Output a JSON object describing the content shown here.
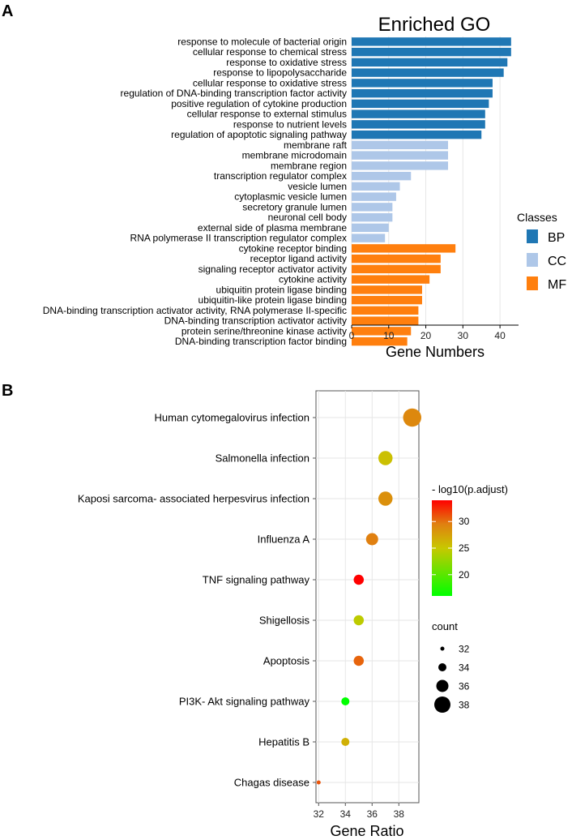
{
  "panel_labels": {
    "a": "A",
    "b": "B"
  },
  "colors": {
    "BP": "#1f77b4",
    "CC": "#aec7e8",
    "MF": "#ff7f0e"
  },
  "chart_data": [
    {
      "type": "bar",
      "orientation": "horizontal",
      "title": "Enriched GO",
      "xlabel": "Gene Numbers",
      "ylabel": "",
      "xlim": [
        0,
        45
      ],
      "xticks": [
        0,
        10,
        20,
        30,
        40
      ],
      "legend": {
        "title": "Classes",
        "position": "right",
        "entries": [
          "BP",
          "CC",
          "MF"
        ]
      },
      "categories": [
        "response to molecule of bacterial origin",
        "cellular response to chemical stress",
        "response to oxidative stress",
        "response to lipopolysaccharide",
        "cellular response to oxidative stress",
        "regulation of DNA-binding transcription factor activity",
        "positive regulation of cytokine production",
        "cellular response to external stimulus",
        "response to nutrient levels",
        "regulation of apoptotic signaling pathway",
        "membrane raft",
        "membrane microdomain",
        "membrane region",
        "transcription regulator complex",
        "vesicle lumen",
        "cytoplasmic vesicle lumen",
        "secretory granule lumen",
        "neuronal cell body",
        "external side of plasma membrane",
        "RNA polymerase II transcription regulator complex",
        "cytokine receptor binding",
        "receptor ligand activity",
        "signaling receptor activator activity",
        "cytokine activity",
        "ubiquitin protein ligase binding",
        "ubiquitin-like protein ligase binding",
        "DNA-binding transcription activator activity, RNA polymerase II-specific",
        "DNA-binding transcription activator activity",
        "protein serine/threonine kinase activity",
        "DNA-binding transcription factor binding"
      ],
      "values": [
        43,
        43,
        42,
        41,
        38,
        38,
        37,
        36,
        36,
        35,
        26,
        26,
        26,
        16,
        13,
        12,
        11,
        11,
        10,
        9,
        28,
        24,
        24,
        21,
        19,
        19,
        18,
        18,
        16,
        15
      ],
      "classes": [
        "BP",
        "BP",
        "BP",
        "BP",
        "BP",
        "BP",
        "BP",
        "BP",
        "BP",
        "BP",
        "CC",
        "CC",
        "CC",
        "CC",
        "CC",
        "CC",
        "CC",
        "CC",
        "CC",
        "CC",
        "MF",
        "MF",
        "MF",
        "MF",
        "MF",
        "MF",
        "MF",
        "MF",
        "MF",
        "MF"
      ]
    },
    {
      "type": "scatter",
      "title": "",
      "xlabel": "Gene Ratio",
      "ylabel": "",
      "xlim": [
        31.8,
        39.5
      ],
      "xticks": [
        32,
        34,
        36,
        38
      ],
      "categories": [
        "Human cytomegalovirus infection",
        "Salmonella infection",
        "Kaposi sarcoma- associated herpesvirus infection",
        "Influenza A",
        "TNF signaling pathway",
        "Shigellosis",
        "Apoptosis",
        "PI3K- Akt signaling pathway",
        "Hepatitis B",
        "Chagas disease"
      ],
      "x": [
        39,
        37,
        37,
        36,
        35,
        35,
        35,
        34,
        34,
        32
      ],
      "count": [
        39,
        37,
        37,
        36,
        35,
        35,
        35,
        34,
        34,
        32
      ],
      "color_value": [
        29,
        25.5,
        28.5,
        29.5,
        34,
        24.5,
        30.5,
        16,
        26.5,
        31
      ],
      "color_legend": {
        "title": "- log10(p.adjust)",
        "ticks": [
          20,
          25,
          30
        ],
        "range": [
          16,
          34
        ],
        "low": "#00ff00",
        "high": "#ff0000"
      },
      "size_legend": {
        "title": "count",
        "values": [
          32,
          34,
          36,
          38
        ]
      }
    }
  ]
}
